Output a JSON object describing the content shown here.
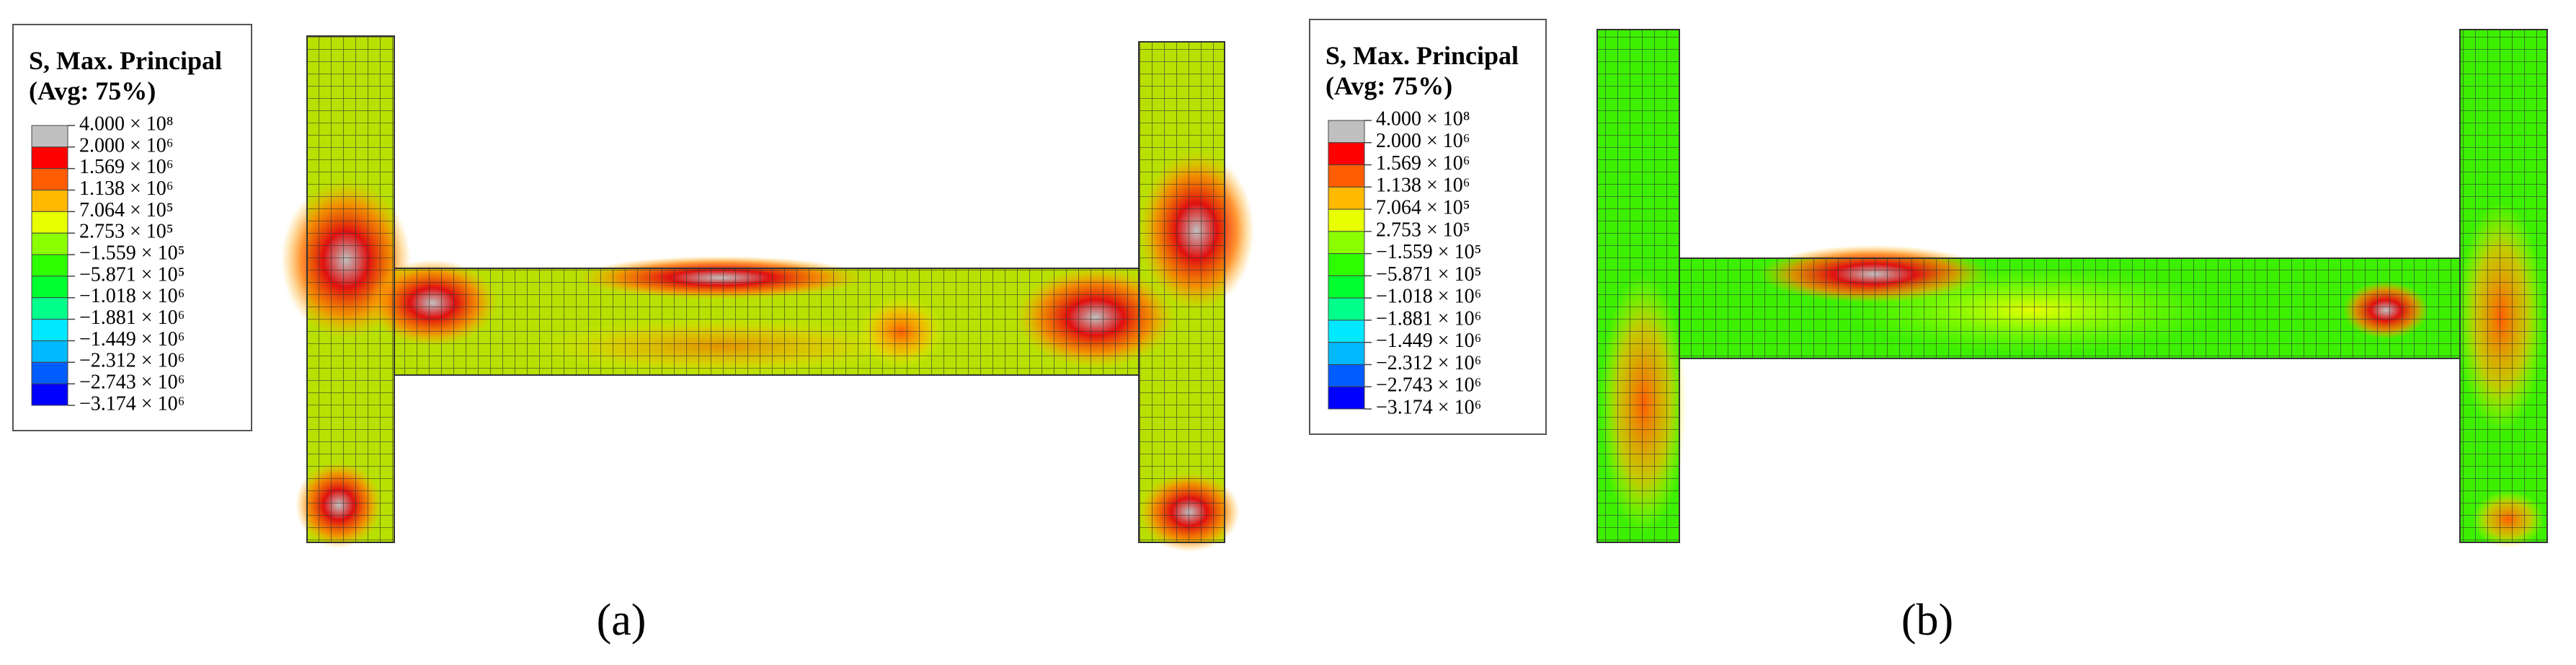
{
  "panels": [
    {
      "caption": "(a)",
      "legend": {
        "title": "S, Max. Principal",
        "subtitle": "(Avg: 75%)",
        "labels": [
          "4.000 × 10⁸",
          "2.000 × 10⁶",
          "1.569 × 10⁶",
          "1.138 × 10⁶",
          "7.064 × 10⁵",
          "2.753 × 10⁵",
          "−1.559 × 10⁵",
          "−5.871 × 10⁵",
          "−1.018 × 10⁶",
          "−1.881 × 10⁶",
          "−1.449 × 10⁶",
          "−2.312 × 10⁶",
          "−2.743 × 10⁶",
          "−3.174 × 10⁶"
        ],
        "colors": [
          "#c0c0c0",
          "#ff0000",
          "#ff5d00",
          "#ffb900",
          "#e8ff00",
          "#8bff00",
          "#2eff00",
          "#00ff2e",
          "#00ff8b",
          "#00e8ff",
          "#00b9ff",
          "#005dff",
          "#0000ff"
        ]
      }
    },
    {
      "caption": "(b)",
      "legend": {
        "title": "S, Max. Principal",
        "subtitle": "(Avg: 75%)",
        "labels": [
          "4.000 × 10⁸",
          "2.000 × 10⁶",
          "1.569 × 10⁶",
          "1.138 × 10⁶",
          "7.064 × 10⁵",
          "2.753 × 10⁵",
          "−1.559 × 10⁵",
          "−5.871 × 10⁵",
          "−1.018 × 10⁶",
          "−1.881 × 10⁶",
          "−1.449 × 10⁶",
          "−2.312 × 10⁶",
          "−2.743 × 10⁶",
          "−3.174 × 10⁶"
        ],
        "colors": [
          "#c0c0c0",
          "#ff0000",
          "#ff5d00",
          "#ffb900",
          "#e8ff00",
          "#8bff00",
          "#2eff00",
          "#00ff2e",
          "#00ff8b",
          "#00e8ff",
          "#00b9ff",
          "#005dff",
          "#0000ff"
        ]
      }
    }
  ]
}
